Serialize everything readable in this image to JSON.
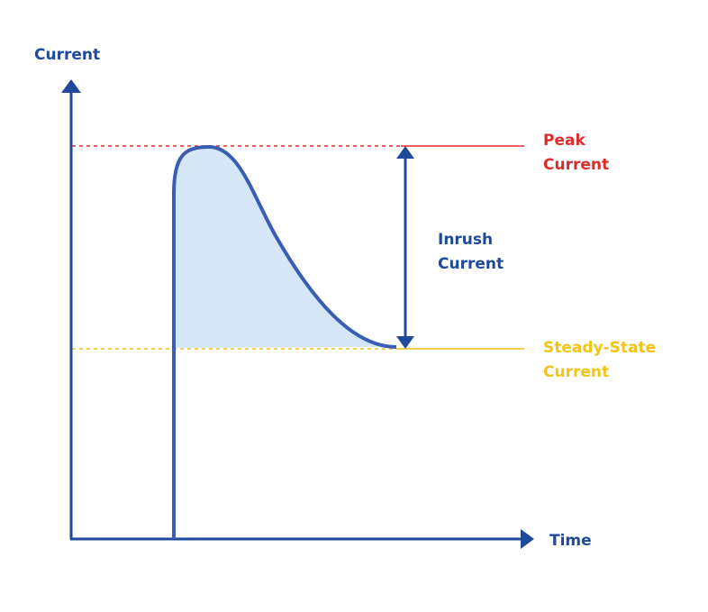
{
  "y_axis_label": "Current",
  "x_axis_label": "Time",
  "peak_label": [
    "Peak",
    "Current"
  ],
  "inrush_label": [
    "Inrush",
    "Current"
  ],
  "steady_label": [
    "Steady-State",
    "Current"
  ]
}
